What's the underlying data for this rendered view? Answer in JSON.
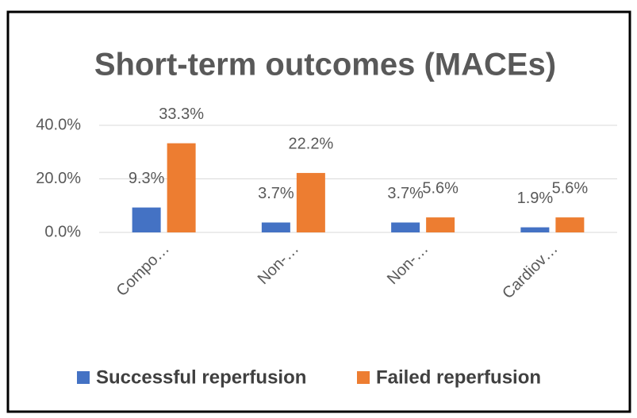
{
  "chart_data": {
    "type": "bar",
    "title": "Short-term outcomes (MACEs)",
    "categories": [
      "Compo…",
      "Non-…",
      "Non-…",
      "Cardiov…"
    ],
    "series": [
      {
        "name": "Successful reperfusion",
        "color": "#4472c4",
        "values": [
          9.3,
          3.7,
          3.7,
          1.9
        ],
        "value_labels": [
          "9.3%",
          "3.7%",
          "3.7%",
          "1.9%"
        ]
      },
      {
        "name": "Failed reperfusion",
        "color": "#ed7d31",
        "values": [
          33.3,
          22.2,
          5.6,
          5.6
        ],
        "value_labels": [
          "33.3%",
          "22.2%",
          "5.6%",
          "5.6%"
        ]
      }
    ],
    "ylim": [
      0,
      40
    ],
    "yticks": [
      {
        "value": 0,
        "label": "0.0%"
      },
      {
        "value": 20,
        "label": "20.0%"
      },
      {
        "value": 40,
        "label": "40.0%"
      }
    ],
    "grid": true,
    "legend": "bottom"
  }
}
